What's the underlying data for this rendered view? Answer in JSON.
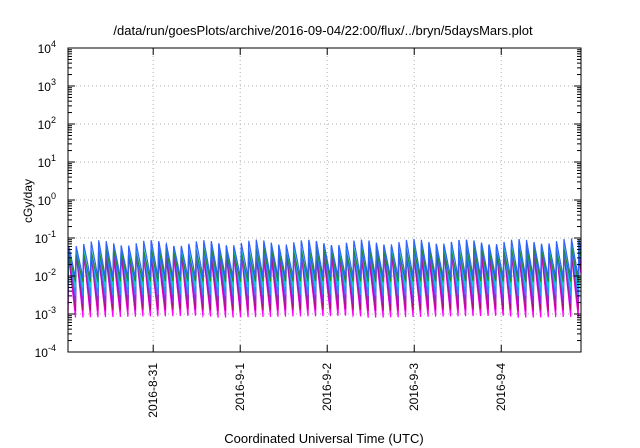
{
  "chart_data": {
    "type": "line",
    "title": "/data/run/goesPlots/archive/2016-09-04/22:00/flux/../bryn/5daysMars.plot",
    "xlabel": "Coordinated Universal Time (UTC)",
    "ylabel": "cGy/day",
    "y_scale": "log",
    "ylim": [
      0.0001,
      10000
    ],
    "y_ticks": [
      {
        "value": 0.0001,
        "base": "10",
        "exp": "-4"
      },
      {
        "value": 0.001,
        "base": "10",
        "exp": "-3"
      },
      {
        "value": 0.01,
        "base": "10",
        "exp": "-2"
      },
      {
        "value": 0.1,
        "base": "10",
        "exp": "-1"
      },
      {
        "value": 1,
        "base": "10",
        "exp": "0"
      },
      {
        "value": 10,
        "base": "10",
        "exp": "1"
      },
      {
        "value": 100,
        "base": "10",
        "exp": "2"
      },
      {
        "value": 1000,
        "base": "10",
        "exp": "3"
      },
      {
        "value": 10000,
        "base": "10",
        "exp": "4"
      }
    ],
    "xlim": [
      "2016-08-30T00:30",
      "2016-09-04T22:00"
    ],
    "x_ticks": [
      {
        "value": "2016-08-31T00:00",
        "label": "2016-8-31"
      },
      {
        "value": "2016-09-01T00:00",
        "label": "2016-9-1"
      },
      {
        "value": "2016-09-02T00:00",
        "label": "2016-9-2"
      },
      {
        "value": "2016-09-03T00:00",
        "label": "2016-9-3"
      },
      {
        "value": "2016-09-04T00:00",
        "label": "2016-9-4"
      }
    ],
    "grid": true,
    "pattern": {
      "description": "sawtooth: sharp rise at each cycle start, gradual decay",
      "cycle_hours": 2.07,
      "first_cycle_start": "2016-08-30T00:30"
    },
    "series": [
      {
        "color": "#ff00ff",
        "peak": 0.035,
        "trough": 0.0008
      },
      {
        "color": "#b01070",
        "peak": 0.04,
        "trough": 0.0012
      },
      {
        "color": "#8a2be2",
        "peak": 0.05,
        "trough": 0.0018
      },
      {
        "color": "#1e90ff",
        "peak": 0.055,
        "trough": 0.003
      },
      {
        "color": "#00ced1",
        "peak": 0.06,
        "trough": 0.005
      },
      {
        "color": "#228b22",
        "peak": 0.045,
        "trough": 0.007
      },
      {
        "color": "#3060ff",
        "peak": 0.075,
        "trough": 0.009
      }
    ]
  }
}
